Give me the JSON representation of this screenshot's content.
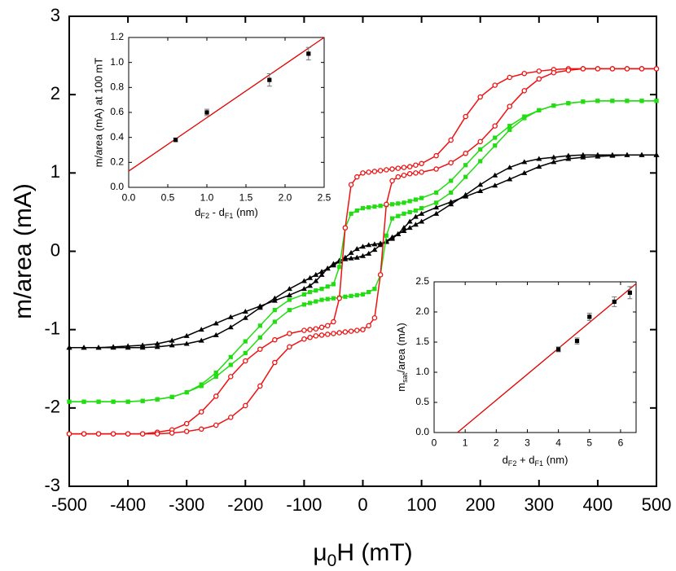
{
  "chart_data": [
    {
      "type": "scatter",
      "xlabel": [
        "μ",
        "0",
        "H (mT)"
      ],
      "ylabel": "m/area (mA)",
      "xlim": [
        -500,
        500
      ],
      "ylim": [
        -3,
        3
      ],
      "xticks": [
        -500,
        -400,
        -300,
        -200,
        -100,
        0,
        100,
        200,
        300,
        400,
        500
      ],
      "yticks": [
        -3,
        -2,
        -1,
        0,
        1,
        2,
        3
      ],
      "x": [
        -500,
        -475,
        -450,
        -425,
        -400,
        -375,
        -350,
        -325,
        -300,
        -275,
        -250,
        -225,
        -200,
        -175,
        -150,
        -125,
        -100,
        -90,
        -80,
        -70,
        -60,
        -50,
        -40,
        -30,
        -20,
        -10,
        0,
        10,
        20,
        30,
        40,
        50,
        60,
        70,
        80,
        90,
        100,
        125,
        150,
        175,
        200,
        225,
        250,
        275,
        300,
        325,
        350,
        375,
        400,
        425,
        450,
        475,
        500
      ],
      "series": [
        {
          "color": "#000000",
          "marker": "triangle",
          "values": [
            -1.23,
            -1.23,
            -1.23,
            -1.23,
            -1.23,
            -1.23,
            -1.22,
            -1.2,
            -1.18,
            -1.14,
            -1.07,
            -0.97,
            -0.85,
            -0.72,
            -0.6,
            -0.48,
            -0.38,
            -0.34,
            -0.3,
            -0.26,
            -0.22,
            -0.18,
            -0.13,
            -0.08,
            -0.02,
            0.03,
            0.06,
            0.08,
            0.09,
            0.1,
            0.12,
            0.16,
            0.22,
            0.3,
            0.38,
            0.44,
            0.48,
            0.56,
            0.63,
            0.7,
            0.77,
            0.84,
            0.92,
            1.0,
            1.08,
            1.14,
            1.18,
            1.2,
            1.21,
            1.22,
            1.23,
            1.23,
            1.23
          ]
        },
        {
          "color": "#000000",
          "marker": "triangle",
          "values": [
            -1.23,
            -1.23,
            -1.23,
            -1.22,
            -1.21,
            -1.2,
            -1.18,
            -1.14,
            -1.08,
            -1.0,
            -0.92,
            -0.84,
            -0.77,
            -0.7,
            -0.63,
            -0.56,
            -0.48,
            -0.44,
            -0.38,
            -0.3,
            -0.22,
            -0.16,
            -0.12,
            -0.1,
            -0.09,
            -0.08,
            -0.06,
            -0.03,
            0.02,
            0.08,
            0.13,
            0.18,
            0.22,
            0.26,
            0.3,
            0.34,
            0.38,
            0.48,
            0.6,
            0.72,
            0.85,
            0.97,
            1.07,
            1.14,
            1.18,
            1.2,
            1.22,
            1.23,
            1.23,
            1.23,
            1.23,
            1.23,
            1.23
          ]
        },
        {
          "color": "#22dd11",
          "marker": "square",
          "values": [
            -1.92,
            -1.92,
            -1.92,
            -1.92,
            -1.92,
            -1.91,
            -1.89,
            -1.86,
            -1.8,
            -1.7,
            -1.55,
            -1.35,
            -1.15,
            -0.95,
            -0.75,
            -0.62,
            -0.55,
            -0.52,
            -0.5,
            -0.48,
            -0.45,
            -0.42,
            -0.2,
            0.3,
            0.48,
            0.52,
            0.55,
            0.56,
            0.57,
            0.58,
            0.59,
            0.6,
            0.61,
            0.62,
            0.64,
            0.66,
            0.68,
            0.75,
            0.9,
            1.1,
            1.3,
            1.45,
            1.6,
            1.72,
            1.8,
            1.86,
            1.89,
            1.91,
            1.92,
            1.92,
            1.92,
            1.92,
            1.92
          ]
        },
        {
          "color": "#22dd11",
          "marker": "square",
          "values": [
            -1.92,
            -1.92,
            -1.92,
            -1.92,
            -1.92,
            -1.91,
            -1.89,
            -1.86,
            -1.8,
            -1.72,
            -1.6,
            -1.45,
            -1.3,
            -1.1,
            -0.9,
            -0.75,
            -0.68,
            -0.66,
            -0.64,
            -0.62,
            -0.61,
            -0.6,
            -0.59,
            -0.58,
            -0.57,
            -0.56,
            -0.55,
            -0.52,
            -0.48,
            -0.3,
            0.2,
            0.42,
            0.45,
            0.48,
            0.5,
            0.52,
            0.55,
            0.62,
            0.75,
            0.95,
            1.15,
            1.35,
            1.55,
            1.7,
            1.8,
            1.86,
            1.89,
            1.91,
            1.92,
            1.92,
            1.92,
            1.92,
            1.92
          ]
        },
        {
          "color": "#ee1111",
          "marker": "circle",
          "values": [
            -2.33,
            -2.33,
            -2.33,
            -2.33,
            -2.33,
            -2.33,
            -2.31,
            -2.28,
            -2.2,
            -2.05,
            -1.85,
            -1.6,
            -1.4,
            -1.25,
            -1.13,
            -1.05,
            -1.01,
            -1.0,
            -0.99,
            -0.97,
            -0.95,
            -0.9,
            -0.6,
            0.3,
            0.85,
            0.95,
            1.0,
            1.01,
            1.02,
            1.03,
            1.04,
            1.05,
            1.06,
            1.07,
            1.08,
            1.1,
            1.12,
            1.22,
            1.42,
            1.72,
            1.97,
            2.12,
            2.22,
            2.27,
            2.3,
            2.32,
            2.33,
            2.33,
            2.33,
            2.33,
            2.33,
            2.33,
            2.33
          ]
        },
        {
          "color": "#ee1111",
          "marker": "circle",
          "values": [
            -2.33,
            -2.33,
            -2.33,
            -2.33,
            -2.33,
            -2.33,
            -2.33,
            -2.32,
            -2.3,
            -2.27,
            -2.22,
            -2.12,
            -1.97,
            -1.72,
            -1.42,
            -1.22,
            -1.12,
            -1.1,
            -1.08,
            -1.07,
            -1.06,
            -1.05,
            -1.04,
            -1.03,
            -1.02,
            -1.01,
            -1.0,
            -0.95,
            -0.85,
            -0.3,
            0.6,
            0.9,
            0.95,
            0.97,
            0.99,
            1.0,
            1.01,
            1.05,
            1.13,
            1.25,
            1.4,
            1.6,
            1.85,
            2.05,
            2.2,
            2.28,
            2.31,
            2.33,
            2.33,
            2.33,
            2.33,
            2.33,
            2.33
          ]
        }
      ]
    },
    {
      "type": "errorbar",
      "xlabel": [
        "d",
        "F2",
        " - d",
        "F1",
        " (nm)"
      ],
      "ylabel": "m/area (mA) at 100 mT",
      "xlim": [
        0,
        2.5
      ],
      "ylim": [
        0,
        1.2
      ],
      "xticks": [
        {
          "value": 0,
          "label": "0.0"
        },
        {
          "value": 0.5,
          "label": "0.5"
        },
        {
          "value": 1,
          "label": "1.0"
        },
        {
          "value": 1.5,
          "label": "1.5"
        },
        {
          "value": 2,
          "label": "2.0"
        },
        {
          "value": 2.5,
          "label": "2.5"
        }
      ],
      "yticks": [
        {
          "value": 0,
          "label": "0.0"
        },
        {
          "value": 0.2,
          "label": "0.2"
        },
        {
          "value": 0.4,
          "label": "0.4"
        },
        {
          "value": 0.6,
          "label": "0.6"
        },
        {
          "value": 0.8,
          "label": "0.8"
        },
        {
          "value": 1,
          "label": "1.0"
        },
        {
          "value": 1.2,
          "label": "1.2"
        }
      ],
      "x": [
        0.6,
        1.0,
        1.8,
        2.3
      ],
      "values": [
        0.38,
        0.6,
        0.86,
        1.07
      ],
      "errors": [
        0.015,
        0.025,
        0.05,
        0.05
      ],
      "color": "#000000",
      "fit": {
        "x": [
          0,
          2.5
        ],
        "values": [
          0.13,
          1.2
        ],
        "color": "#e00000"
      }
    },
    {
      "type": "errorbar",
      "xlabel": [
        "d",
        "F2",
        " + d",
        "F1",
        " (nm)"
      ],
      "ylabel": [
        "m",
        "sat",
        "/area (mA)"
      ],
      "xlim": [
        0,
        6.5
      ],
      "ylim": [
        0,
        2.5
      ],
      "xticks": [
        0,
        1,
        2,
        3,
        4,
        5,
        6
      ],
      "yticks": [
        {
          "value": 0,
          "label": "0.0"
        },
        {
          "value": 0.5,
          "label": "0.5"
        },
        {
          "value": 1,
          "label": "1.0"
        },
        {
          "value": 1.5,
          "label": "1.5"
        },
        {
          "value": 2,
          "label": "2.0"
        },
        {
          "value": 2.5,
          "label": "2.5"
        }
      ],
      "x": [
        4.0,
        4.6,
        5.0,
        5.8,
        6.3
      ],
      "values": [
        1.38,
        1.52,
        1.92,
        2.17,
        2.32
      ],
      "errors": [
        0.04,
        0.05,
        0.06,
        0.08,
        0.1
      ],
      "color": "#000000",
      "fit": {
        "x": [
          0.75,
          6.5
        ],
        "values": [
          0,
          2.47
        ],
        "color": "#e00000"
      }
    }
  ]
}
